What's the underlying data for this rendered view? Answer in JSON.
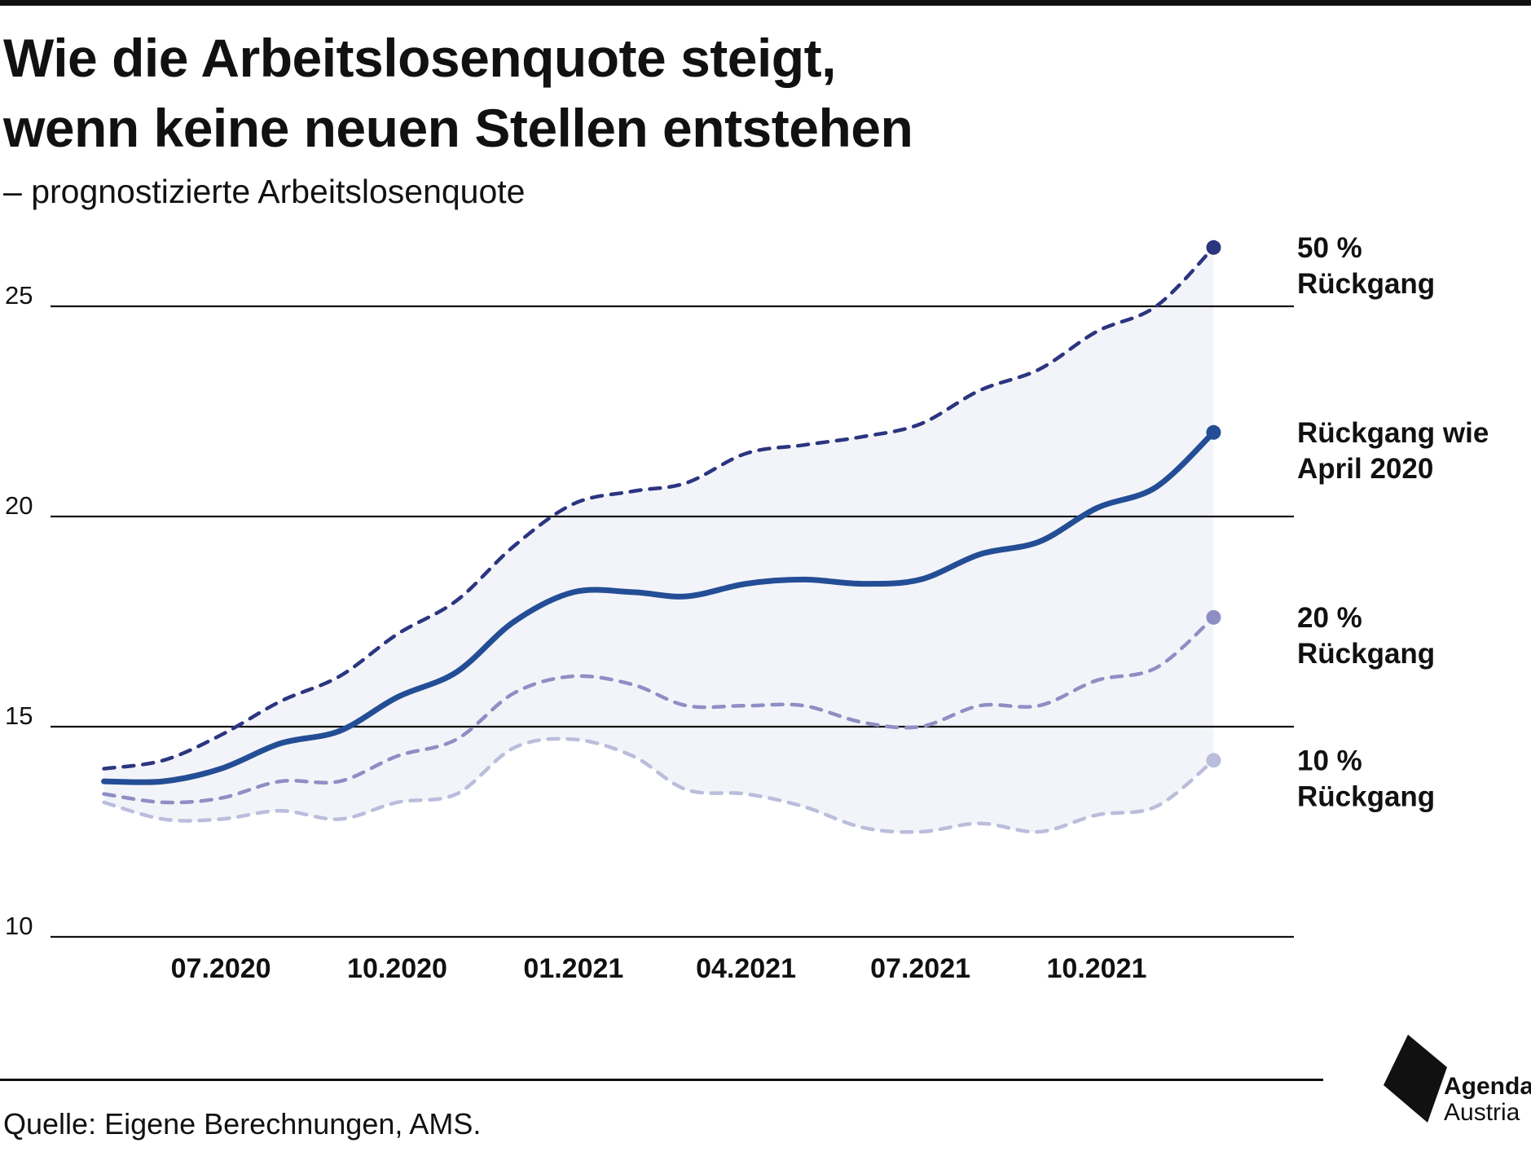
{
  "title_lines": [
    "Wie die Arbeitslosenquote steigt,",
    "wenn keine neuen Stellen entstehen"
  ],
  "subtitle": "– prognostizierte Arbeitslosenquote",
  "source": "Quelle: Eigene Berechnungen, AMS.",
  "logo": {
    "name": "Agenda",
    "sub": "Austria",
    "icon": "agenda-austria-logo"
  },
  "colors": {
    "s50": "#2b3580",
    "april": "#234e96",
    "s20": "#8f8ec4",
    "s10": "#bbbddc",
    "band": "#f3f4f9",
    "text": "#111111"
  },
  "chart_data": {
    "type": "line",
    "grid": true,
    "ylim": [
      10,
      27
    ],
    "yticks": [
      10,
      15,
      20,
      25
    ],
    "x_start": "2020-04-15",
    "x_end": "2021-12-31",
    "xtick_dates": [
      "2020-07-01",
      "2020-10-01",
      "2021-01-01",
      "2021-04-01",
      "2021-07-01",
      "2021-10-01"
    ],
    "xtick_labels": [
      "07.2020",
      "10.2020",
      "01.2021",
      "04.2021",
      "07.2021",
      "10.2021"
    ],
    "x": [
      "2020-05-01",
      "2020-06-01",
      "2020-07-01",
      "2020-08-01",
      "2020-09-01",
      "2020-10-01",
      "2020-11-01",
      "2020-12-01",
      "2021-01-01",
      "2021-02-01",
      "2021-03-01",
      "2021-04-01",
      "2021-05-01",
      "2021-06-01",
      "2021-07-01",
      "2021-08-01",
      "2021-09-01",
      "2021-10-01",
      "2021-11-01",
      "2021-12-01"
    ],
    "series": [
      {
        "name": "50 % Rückgang",
        "label_lines": [
          "50 %",
          "Rückgang"
        ],
        "style": "dashed",
        "color_key": "s50",
        "values": [
          14.0,
          14.2,
          14.8,
          15.6,
          16.2,
          17.2,
          18.0,
          19.3,
          20.3,
          20.6,
          20.8,
          21.5,
          21.7,
          21.9,
          22.2,
          23.0,
          23.5,
          24.4,
          25.0,
          26.4
        ]
      },
      {
        "name": "Rückgang wie April 2020",
        "label_lines": [
          "Rückgang wie",
          "April 2020"
        ],
        "style": "solid",
        "color_key": "april",
        "values": [
          13.7,
          13.7,
          14.0,
          14.6,
          14.9,
          15.7,
          16.3,
          17.5,
          18.2,
          18.2,
          18.1,
          18.4,
          18.5,
          18.4,
          18.5,
          19.1,
          19.4,
          20.2,
          20.7,
          22.0
        ]
      },
      {
        "name": "20 % Rückgang",
        "label_lines": [
          "20 %",
          "Rückgang"
        ],
        "style": "dashed",
        "color_key": "s20",
        "values": [
          13.4,
          13.2,
          13.3,
          13.7,
          13.7,
          14.3,
          14.7,
          15.8,
          16.2,
          16.0,
          15.5,
          15.5,
          15.5,
          15.1,
          15.0,
          15.5,
          15.5,
          16.1,
          16.4,
          17.6
        ]
      },
      {
        "name": "10 % Rückgang",
        "label_lines": [
          "10 %",
          "Rückgang"
        ],
        "style": "dashed",
        "color_key": "s10",
        "values": [
          13.2,
          12.8,
          12.8,
          13.0,
          12.8,
          13.2,
          13.4,
          14.5,
          14.7,
          14.3,
          13.5,
          13.4,
          13.1,
          12.6,
          12.5,
          12.7,
          12.5,
          12.9,
          13.1,
          14.2
        ]
      }
    ]
  }
}
